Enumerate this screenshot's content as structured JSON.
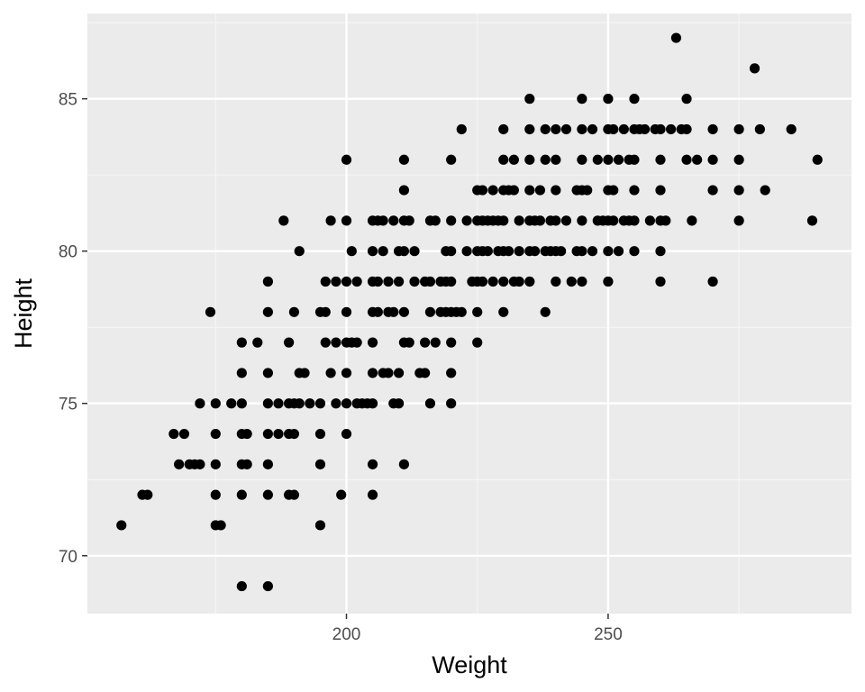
{
  "colors": {
    "panel_background": "#ebebeb",
    "grid_major": "#ffffff",
    "grid_minor": "#f5f5f5",
    "point": "#000000",
    "tick": "#333333",
    "tick_label": "#4d4d4d"
  },
  "chart_data": {
    "type": "scatter",
    "title": "",
    "xlabel": "Weight",
    "ylabel": "Height",
    "xlim": [
      150.5,
      296.5
    ],
    "ylim": [
      68.1,
      87.8
    ],
    "x_ticks": [
      200,
      250
    ],
    "x_minor_ticks": [
      175,
      225,
      275
    ],
    "y_ticks": [
      70,
      75,
      80,
      85
    ],
    "y_minor_ticks": [
      72.5,
      77.5,
      82.5,
      87.5
    ],
    "grid": true,
    "legend": "none",
    "points": [
      [
        157,
        71
      ],
      [
        161,
        72
      ],
      [
        162,
        72
      ],
      [
        167,
        74
      ],
      [
        168,
        73
      ],
      [
        169,
        74
      ],
      [
        170,
        73
      ],
      [
        171,
        73
      ],
      [
        172,
        75
      ],
      [
        172,
        73
      ],
      [
        174,
        78
      ],
      [
        175,
        75
      ],
      [
        175,
        74
      ],
      [
        175,
        73
      ],
      [
        175,
        72
      ],
      [
        175,
        71
      ],
      [
        176,
        71
      ],
      [
        178,
        75
      ],
      [
        180,
        77
      ],
      [
        180,
        76
      ],
      [
        180,
        75
      ],
      [
        180,
        74
      ],
      [
        180,
        73
      ],
      [
        180,
        72
      ],
      [
        180,
        69
      ],
      [
        181,
        74
      ],
      [
        181,
        73
      ],
      [
        183,
        77
      ],
      [
        185,
        79
      ],
      [
        185,
        78
      ],
      [
        185,
        76
      ],
      [
        185,
        75
      ],
      [
        185,
        74
      ],
      [
        185,
        73
      ],
      [
        185,
        72
      ],
      [
        185,
        69
      ],
      [
        187,
        75
      ],
      [
        187,
        74
      ],
      [
        188,
        81
      ],
      [
        189,
        77
      ],
      [
        189,
        75
      ],
      [
        189,
        74
      ],
      [
        189,
        72
      ],
      [
        190,
        75
      ],
      [
        190,
        74
      ],
      [
        190,
        72
      ],
      [
        190,
        78
      ],
      [
        191,
        80
      ],
      [
        191,
        76
      ],
      [
        191,
        75
      ],
      [
        192,
        76
      ],
      [
        193,
        75
      ],
      [
        195,
        78
      ],
      [
        195,
        74
      ],
      [
        195,
        73
      ],
      [
        195,
        71
      ],
      [
        195,
        75
      ],
      [
        196,
        79
      ],
      [
        196,
        77
      ],
      [
        196,
        78
      ],
      [
        197,
        81
      ],
      [
        197,
        76
      ],
      [
        198,
        79
      ],
      [
        198,
        77
      ],
      [
        198,
        75
      ],
      [
        199,
        72
      ],
      [
        200,
        83
      ],
      [
        200,
        81
      ],
      [
        200,
        79
      ],
      [
        200,
        78
      ],
      [
        200,
        77
      ],
      [
        200,
        76
      ],
      [
        200,
        75
      ],
      [
        200,
        74
      ],
      [
        201,
        80
      ],
      [
        201,
        77
      ],
      [
        202,
        79
      ],
      [
        202,
        77
      ],
      [
        202,
        75
      ],
      [
        203,
        75
      ],
      [
        204,
        75
      ],
      [
        205,
        81
      ],
      [
        205,
        80
      ],
      [
        205,
        79
      ],
      [
        205,
        78
      ],
      [
        205,
        77
      ],
      [
        205,
        76
      ],
      [
        205,
        75
      ],
      [
        205,
        73
      ],
      [
        205,
        72
      ],
      [
        206,
        81
      ],
      [
        206,
        79
      ],
      [
        206,
        78
      ],
      [
        207,
        81
      ],
      [
        207,
        80
      ],
      [
        207,
        76
      ],
      [
        208,
        79
      ],
      [
        208,
        78
      ],
      [
        208,
        76
      ],
      [
        209,
        81
      ],
      [
        209,
        78
      ],
      [
        209,
        75
      ],
      [
        210,
        80
      ],
      [
        210,
        76
      ],
      [
        210,
        75
      ],
      [
        210,
        79
      ],
      [
        211,
        83
      ],
      [
        211,
        82
      ],
      [
        211,
        81
      ],
      [
        211,
        80
      ],
      [
        211,
        78
      ],
      [
        211,
        77
      ],
      [
        211,
        73
      ],
      [
        212,
        81
      ],
      [
        212,
        77
      ],
      [
        213,
        80
      ],
      [
        213,
        79
      ],
      [
        214,
        76
      ],
      [
        215,
        79
      ],
      [
        215,
        77
      ],
      [
        215,
        76
      ],
      [
        216,
        81
      ],
      [
        216,
        79
      ],
      [
        216,
        78
      ],
      [
        216,
        75
      ],
      [
        217,
        81
      ],
      [
        217,
        77
      ],
      [
        218,
        79
      ],
      [
        218,
        78
      ],
      [
        219,
        80
      ],
      [
        219,
        79
      ],
      [
        219,
        78
      ],
      [
        220,
        83
      ],
      [
        220,
        81
      ],
      [
        220,
        80
      ],
      [
        220,
        78
      ],
      [
        220,
        77
      ],
      [
        220,
        76
      ],
      [
        220,
        75
      ],
      [
        220,
        79
      ],
      [
        221,
        78
      ],
      [
        222,
        84
      ],
      [
        222,
        78
      ],
      [
        223,
        80
      ],
      [
        223,
        81
      ],
      [
        224,
        79
      ],
      [
        225,
        82
      ],
      [
        225,
        81
      ],
      [
        225,
        80
      ],
      [
        225,
        79
      ],
      [
        225,
        78
      ],
      [
        225,
        77
      ],
      [
        226,
        82
      ],
      [
        226,
        81
      ],
      [
        226,
        80
      ],
      [
        226,
        79
      ],
      [
        227,
        80
      ],
      [
        227,
        81
      ],
      [
        228,
        81
      ],
      [
        228,
        82
      ],
      [
        228,
        79
      ],
      [
        229,
        80
      ],
      [
        229,
        81
      ],
      [
        230,
        84
      ],
      [
        230,
        83
      ],
      [
        230,
        82
      ],
      [
        230,
        81
      ],
      [
        230,
        80
      ],
      [
        230,
        79
      ],
      [
        230,
        78
      ],
      [
        231,
        82
      ],
      [
        231,
        80
      ],
      [
        232,
        83
      ],
      [
        232,
        82
      ],
      [
        232,
        79
      ],
      [
        233,
        81
      ],
      [
        233,
        80
      ],
      [
        233,
        79
      ],
      [
        235,
        85
      ],
      [
        235,
        84
      ],
      [
        235,
        83
      ],
      [
        235,
        82
      ],
      [
        235,
        81
      ],
      [
        235,
        80
      ],
      [
        235,
        79
      ],
      [
        236,
        81
      ],
      [
        236,
        80
      ],
      [
        237,
        82
      ],
      [
        237,
        81
      ],
      [
        238,
        84
      ],
      [
        238,
        83
      ],
      [
        238,
        80
      ],
      [
        238,
        78
      ],
      [
        239,
        81
      ],
      [
        239,
        80
      ],
      [
        240,
        84
      ],
      [
        240,
        83
      ],
      [
        240,
        82
      ],
      [
        240,
        81
      ],
      [
        240,
        80
      ],
      [
        240,
        79
      ],
      [
        241,
        80
      ],
      [
        242,
        84
      ],
      [
        242,
        81
      ],
      [
        243,
        79
      ],
      [
        244,
        82
      ],
      [
        244,
        80
      ],
      [
        245,
        85
      ],
      [
        245,
        84
      ],
      [
        245,
        83
      ],
      [
        245,
        82
      ],
      [
        245,
        81
      ],
      [
        245,
        80
      ],
      [
        245,
        79
      ],
      [
        246,
        82
      ],
      [
        247,
        84
      ],
      [
        247,
        80
      ],
      [
        248,
        83
      ],
      [
        248,
        81
      ],
      [
        249,
        81
      ],
      [
        250,
        85
      ],
      [
        250,
        84
      ],
      [
        250,
        83
      ],
      [
        250,
        82
      ],
      [
        250,
        81
      ],
      [
        250,
        80
      ],
      [
        250,
        79
      ],
      [
        251,
        84
      ],
      [
        251,
        82
      ],
      [
        251,
        81
      ],
      [
        252,
        80
      ],
      [
        252,
        83
      ],
      [
        253,
        84
      ],
      [
        253,
        81
      ],
      [
        254,
        83
      ],
      [
        254,
        81
      ],
      [
        255,
        85
      ],
      [
        255,
        84
      ],
      [
        255,
        83
      ],
      [
        255,
        82
      ],
      [
        255,
        81
      ],
      [
        255,
        80
      ],
      [
        256,
        84
      ],
      [
        257,
        84
      ],
      [
        258,
        81
      ],
      [
        259,
        84
      ],
      [
        260,
        84
      ],
      [
        260,
        83
      ],
      [
        260,
        82
      ],
      [
        260,
        81
      ],
      [
        260,
        80
      ],
      [
        260,
        79
      ],
      [
        261,
        81
      ],
      [
        262,
        84
      ],
      [
        263,
        87
      ],
      [
        264,
        84
      ],
      [
        265,
        85
      ],
      [
        265,
        84
      ],
      [
        265,
        83
      ],
      [
        266,
        81
      ],
      [
        267,
        83
      ],
      [
        270,
        84
      ],
      [
        270,
        83
      ],
      [
        270,
        82
      ],
      [
        270,
        79
      ],
      [
        275,
        84
      ],
      [
        275,
        83
      ],
      [
        275,
        82
      ],
      [
        275,
        81
      ],
      [
        278,
        86
      ],
      [
        279,
        84
      ],
      [
        280,
        82
      ],
      [
        285,
        84
      ],
      [
        289,
        81
      ],
      [
        290,
        83
      ]
    ]
  }
}
